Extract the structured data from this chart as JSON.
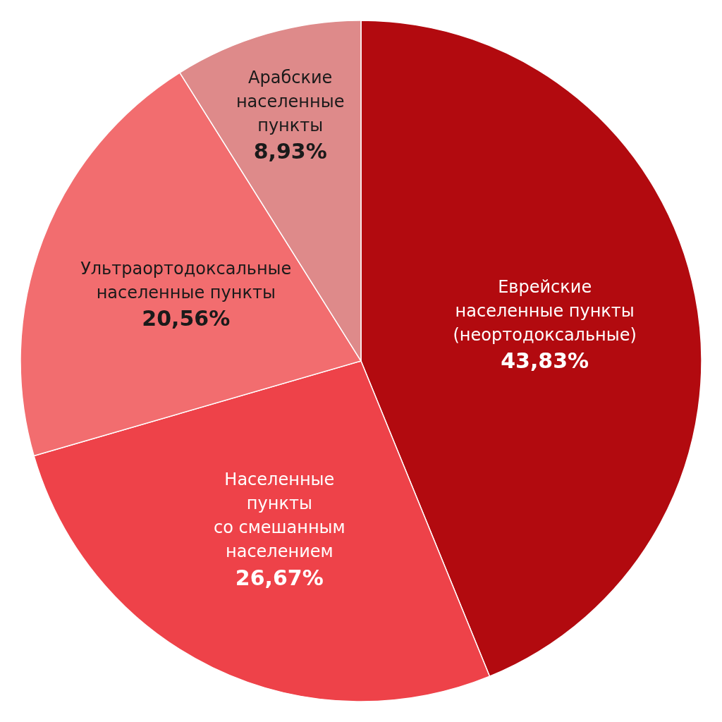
{
  "chart_data": {
    "type": "pie",
    "categories": [
      "Еврейские\nнаселенные пункты\n(неортодоксальные)",
      "Населенные\nпункты\nсо смешанным\nнаселением",
      "Ультраортодоксальные\nнаселенные пункты",
      "Арабские\nнаселенные\nпункты"
    ],
    "values": [
      43.83,
      26.67,
      20.56,
      8.93
    ],
    "value_labels": [
      "43,83%",
      "26,67%",
      "20,56%",
      "8,93%"
    ],
    "colors": [
      "#b20a0f",
      "#ee4249",
      "#f26d6f",
      "#de8a8a"
    ]
  }
}
